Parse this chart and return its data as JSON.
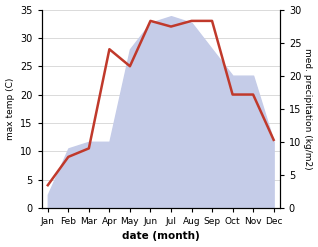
{
  "months": [
    "Jan",
    "Feb",
    "Mar",
    "Apr",
    "May",
    "Jun",
    "Jul",
    "Aug",
    "Sep",
    "Oct",
    "Nov",
    "Dec"
  ],
  "temp": [
    4,
    9,
    10.5,
    28,
    25,
    33,
    32,
    33,
    33,
    20,
    20,
    12
  ],
  "precip": [
    2,
    9,
    10,
    10,
    24,
    28,
    29,
    28,
    24,
    20,
    20,
    10
  ],
  "temp_ylim": [
    0,
    35
  ],
  "precip_ylim": [
    0,
    30
  ],
  "temp_color": "#c0392b",
  "precip_fill_color": "#c5cce8",
  "xlabel": "date (month)",
  "ylabel_left": "max temp (C)",
  "ylabel_right": "med. precipitation (kg/m2)",
  "bg_color": "#ffffff",
  "grid_color": "#cccccc",
  "line_width": 1.8,
  "tick_fontsize": 7,
  "label_fontsize": 6.5,
  "xlabel_fontsize": 7.5
}
